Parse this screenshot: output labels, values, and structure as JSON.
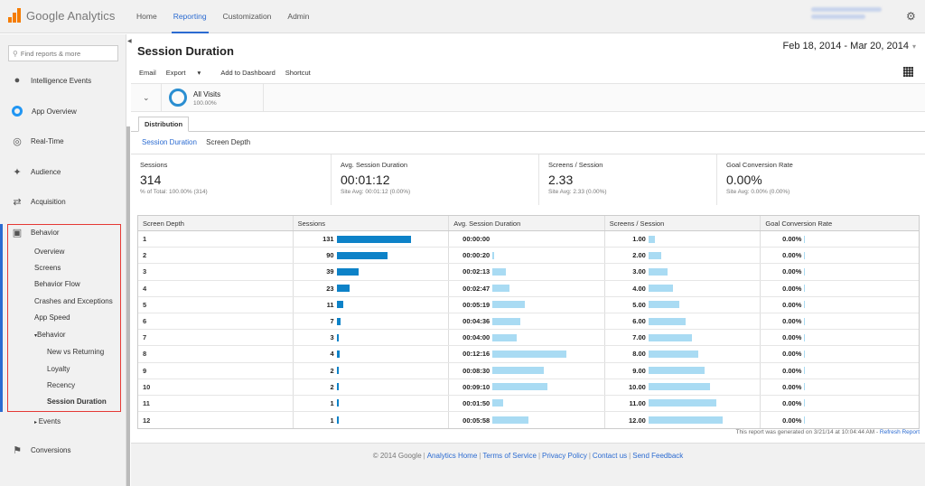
{
  "app": {
    "logo_text": "Google Analytics"
  },
  "topnav": [
    "Home",
    "Reporting",
    "Customization",
    "Admin"
  ],
  "sidebar": {
    "search_placeholder": "Find reports & more",
    "items": [
      {
        "label": "Intelligence Events",
        "icon": "lightbulb-icon"
      },
      {
        "label": "App Overview",
        "icon": "app-overview-icon"
      },
      {
        "label": "Real-Time",
        "icon": "realtime-icon"
      },
      {
        "label": "Audience",
        "icon": "audience-icon"
      },
      {
        "label": "Acquisition",
        "icon": "acquisition-icon"
      },
      {
        "label": "Behavior",
        "icon": "behavior-icon"
      }
    ],
    "behavior_sub": [
      "Overview",
      "Screens",
      "Behavior Flow",
      "Crashes and Exceptions",
      "App Speed"
    ],
    "behavior_group": "Behavior",
    "behavior_group_sub": [
      "New vs Returning",
      "Loyalty",
      "Recency",
      "Session Duration"
    ],
    "events": "Events",
    "conversions": "Conversions"
  },
  "page": {
    "title": "Session Duration",
    "date_range": "Feb 18, 2014 - Mar 20, 2014",
    "toolbar": [
      "Email",
      "Export",
      "Add to Dashboard",
      "Shortcut"
    ],
    "export_caret": "▾",
    "segment": {
      "name": "All Visits",
      "pct": "100.00%"
    },
    "tab": "Distribution",
    "subtabs": [
      "Session Duration",
      "Screen Depth"
    ]
  },
  "scorecards": [
    {
      "label": "Sessions",
      "value": "314",
      "sub": "% of Total: 100.00% (314)"
    },
    {
      "label": "Avg. Session Duration",
      "value": "00:01:12",
      "sub": "Site Avg: 00:01:12 (0.00%)"
    },
    {
      "label": "Screens / Session",
      "value": "2.33",
      "sub": "Site Avg: 2.33 (0.00%)"
    },
    {
      "label": "Goal Conversion Rate",
      "value": "0.00%",
      "sub": "Site Avg: 0.00% (0.00%)"
    }
  ],
  "table": {
    "headers": [
      "Screen Depth",
      "Sessions",
      "Avg. Session Duration",
      "Screens / Session",
      "Goal Conversion Rate"
    ],
    "rows": [
      {
        "depth": "1",
        "sessions": 131,
        "duration": "00:00:00",
        "dur_sec": 0,
        "sps": "1.00",
        "sps_val": 1,
        "gcr": "0.00%"
      },
      {
        "depth": "2",
        "sessions": 90,
        "duration": "00:00:20",
        "dur_sec": 20,
        "sps": "2.00",
        "sps_val": 2,
        "gcr": "0.00%"
      },
      {
        "depth": "3",
        "sessions": 39,
        "duration": "00:02:13",
        "dur_sec": 133,
        "sps": "3.00",
        "sps_val": 3,
        "gcr": "0.00%"
      },
      {
        "depth": "4",
        "sessions": 23,
        "duration": "00:02:47",
        "dur_sec": 167,
        "sps": "4.00",
        "sps_val": 4,
        "gcr": "0.00%"
      },
      {
        "depth": "5",
        "sessions": 11,
        "duration": "00:05:19",
        "dur_sec": 319,
        "sps": "5.00",
        "sps_val": 5,
        "gcr": "0.00%"
      },
      {
        "depth": "6",
        "sessions": 7,
        "duration": "00:04:36",
        "dur_sec": 276,
        "sps": "6.00",
        "sps_val": 6,
        "gcr": "0.00%"
      },
      {
        "depth": "7",
        "sessions": 3,
        "duration": "00:04:00",
        "dur_sec": 240,
        "sps": "7.00",
        "sps_val": 7,
        "gcr": "0.00%"
      },
      {
        "depth": "8",
        "sessions": 4,
        "duration": "00:12:16",
        "dur_sec": 736,
        "sps": "8.00",
        "sps_val": 8,
        "gcr": "0.00%"
      },
      {
        "depth": "9",
        "sessions": 2,
        "duration": "00:08:30",
        "dur_sec": 510,
        "sps": "9.00",
        "sps_val": 9,
        "gcr": "0.00%"
      },
      {
        "depth": "10",
        "sessions": 2,
        "duration": "00:09:10",
        "dur_sec": 550,
        "sps": "10.00",
        "sps_val": 10,
        "gcr": "0.00%"
      },
      {
        "depth": "11",
        "sessions": 1,
        "duration": "00:01:50",
        "dur_sec": 110,
        "sps": "11.00",
        "sps_val": 11,
        "gcr": "0.00%"
      },
      {
        "depth": "12",
        "sessions": 1,
        "duration": "00:05:58",
        "dur_sec": 358,
        "sps": "12.00",
        "sps_val": 12,
        "gcr": "0.00%"
      }
    ]
  },
  "generated": {
    "text": "This report was generated on 3/21/14 at 10:04:44 AM -",
    "refresh": "Refresh Report"
  },
  "footer": {
    "copyright": "© 2014 Google",
    "links": [
      "Analytics Home",
      "Terms of Service",
      "Privacy Policy",
      "Contact us",
      "Send Feedback"
    ]
  },
  "colors": {
    "accent": "#2b6bd1",
    "bar_dark": "#0d82c8",
    "bar_light": "#a9dbf3",
    "highlight_box": "#e53935"
  }
}
